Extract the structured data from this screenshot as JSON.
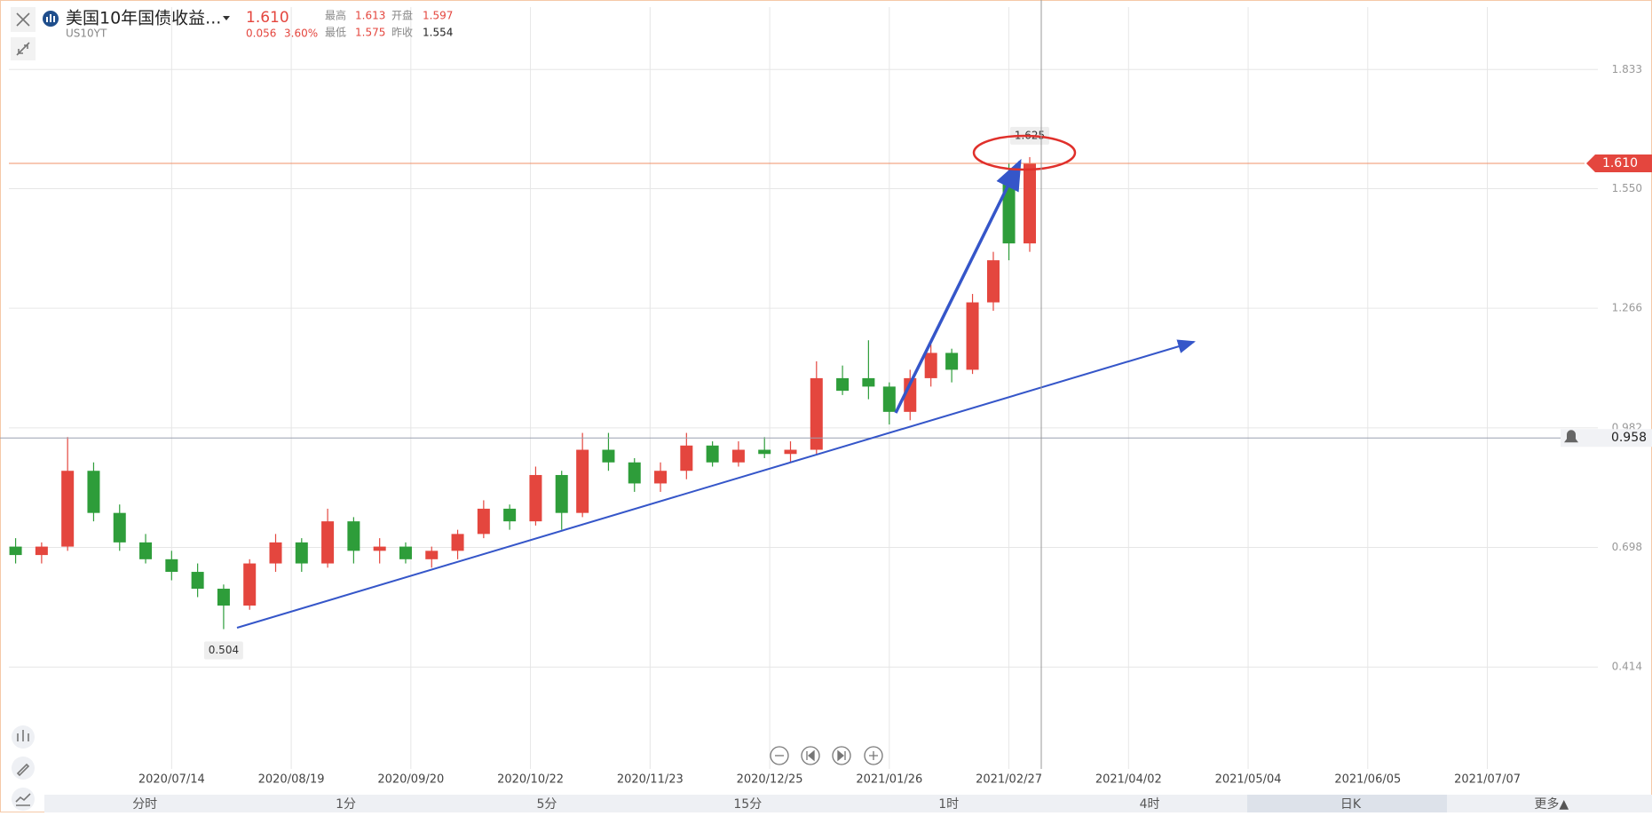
{
  "header": {
    "title": "美国10年国债收益...",
    "symbol": "US10YT",
    "price": "1.610",
    "change": "0.056",
    "change_pct": "3.60%",
    "high_label": "最高",
    "high": "1.613",
    "open_label": "开盘",
    "open": "1.597",
    "low_label": "最低",
    "low": "1.575",
    "prev_label": "昨收",
    "prev": "1.554"
  },
  "tabs": [
    "分时",
    "1分",
    "5分",
    "15分",
    "1时",
    "4时",
    "日K",
    "更多▲"
  ],
  "chart_data": {
    "type": "candlestick",
    "x": [
      3,
      8,
      13,
      18,
      23,
      28,
      33,
      38,
      43,
      48,
      53,
      58,
      63,
      68,
      73,
      78,
      83,
      88,
      93,
      98,
      103,
      108,
      112,
      117,
      122,
      127,
      132,
      137,
      142,
      147,
      152,
      157,
      162,
      167,
      171,
      175,
      179,
      183,
      187,
      191,
      194,
      198
    ],
    "open": [
      0.7,
      0.68,
      0.7,
      0.88,
      0.78,
      0.71,
      0.67,
      0.64,
      0.6,
      0.56,
      0.66,
      0.71,
      0.66,
      0.76,
      0.69,
      0.7,
      0.67,
      0.69,
      0.73,
      0.79,
      0.76,
      0.87,
      0.78,
      0.93,
      0.9,
      0.85,
      0.88,
      0.94,
      0.9,
      0.93,
      0.92,
      0.93,
      1.1,
      1.1,
      1.08,
      1.02,
      1.1,
      1.16,
      1.12,
      1.28,
      1.58,
      1.42
    ],
    "high": [
      0.72,
      0.71,
      0.96,
      0.9,
      0.8,
      0.73,
      0.69,
      0.66,
      0.61,
      0.67,
      0.73,
      0.72,
      0.79,
      0.77,
      0.72,
      0.71,
      0.7,
      0.74,
      0.81,
      0.8,
      0.89,
      0.88,
      0.97,
      0.97,
      0.91,
      0.9,
      0.97,
      0.95,
      0.95,
      0.96,
      0.95,
      1.14,
      1.13,
      1.19,
      1.09,
      1.12,
      1.18,
      1.17,
      1.3,
      1.4,
      1.61,
      1.625
    ],
    "low": [
      0.66,
      0.66,
      0.69,
      0.76,
      0.69,
      0.66,
      0.62,
      0.58,
      0.504,
      0.55,
      0.64,
      0.64,
      0.65,
      0.66,
      0.66,
      0.66,
      0.65,
      0.67,
      0.72,
      0.74,
      0.75,
      0.74,
      0.77,
      0.88,
      0.83,
      0.83,
      0.86,
      0.89,
      0.89,
      0.91,
      0.9,
      0.92,
      1.06,
      1.05,
      0.99,
      1.0,
      1.08,
      1.09,
      1.11,
      1.26,
      1.38,
      1.4
    ],
    "close": [
      0.68,
      0.7,
      0.88,
      0.78,
      0.71,
      0.67,
      0.64,
      0.6,
      0.56,
      0.66,
      0.71,
      0.66,
      0.76,
      0.69,
      0.7,
      0.67,
      0.69,
      0.73,
      0.79,
      0.76,
      0.87,
      0.78,
      0.93,
      0.9,
      0.85,
      0.88,
      0.94,
      0.9,
      0.93,
      0.92,
      0.93,
      1.1,
      1.07,
      1.08,
      1.02,
      1.1,
      1.16,
      1.12,
      1.28,
      1.38,
      1.42,
      1.61
    ],
    "up_color": "#e4463e",
    "down_color": "#2e9d3a",
    "xlim": [
      0,
      304
    ],
    "xticks": [
      {
        "value": 33,
        "label": "2020/07/14"
      },
      {
        "value": 56,
        "label": "2020/08/19"
      },
      {
        "value": 79,
        "label": "2020/09/20"
      },
      {
        "value": 102,
        "label": "2020/10/22"
      },
      {
        "value": 125,
        "label": "2020/11/23"
      },
      {
        "value": 148,
        "label": "2020/12/25"
      },
      {
        "value": 171,
        "label": "2021/01/26"
      },
      {
        "value": 194,
        "label": "2021/02/27"
      },
      {
        "value": 217,
        "label": "2021/04/02"
      },
      {
        "value": 240,
        "label": "2021/05/04"
      },
      {
        "value": 263,
        "label": "2021/06/05"
      },
      {
        "value": 286,
        "label": "2021/07/07"
      }
    ],
    "ylim": [
      0.172,
      1.861
    ],
    "yticks": [
      0.414,
      0.698,
      0.982,
      1.266,
      {
        "value": 1.55,
        "label": "1.550"
      },
      1.833
    ],
    "grid": true,
    "last_price": {
      "value": 1.61,
      "label": "1.610"
    },
    "alert_price": 0.958,
    "max_label": 1.625,
    "min_label": 0.504
  }
}
